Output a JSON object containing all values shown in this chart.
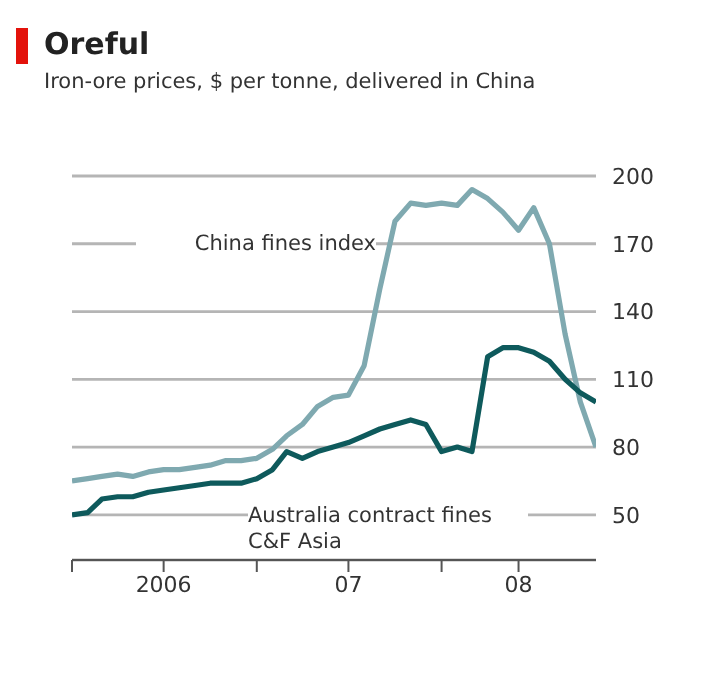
{
  "chart_data": {
    "type": "line",
    "title": "Oreful",
    "subtitle": "Iron-ore prices, $ per tonne, delivered in China",
    "xlim": [
      "2006-01",
      "2008-11"
    ],
    "xticks": [
      {
        "value": "2006-01",
        "label": null
      },
      {
        "value": "2006-07",
        "label": "2006"
      },
      {
        "value": "2007-01",
        "label": null
      },
      {
        "value": "2007-07",
        "label": "07"
      },
      {
        "value": "2008-01",
        "label": null
      },
      {
        "value": "2008-06",
        "label": "08"
      }
    ],
    "ylim": [
      30,
      200
    ],
    "yticks": [
      50,
      80,
      110,
      140,
      170,
      200
    ],
    "grid": "y",
    "legend": false,
    "marker": "none",
    "line_style": "solid",
    "series": [
      {
        "name": "China fines index",
        "color": "#7fa9b0",
        "x": [
          "2006-01",
          "2006-02",
          "2006-03",
          "2006-04",
          "2006-05",
          "2006-06",
          "2006-07",
          "2006-08",
          "2006-09",
          "2006-10",
          "2006-11",
          "2006-12",
          "2007-01",
          "2007-02",
          "2007-03",
          "2007-04",
          "2007-05",
          "2007-06",
          "2007-07",
          "2007-08",
          "2007-09",
          "2007-10",
          "2007-11",
          "2007-12",
          "2008-01",
          "2008-02",
          "2008-03",
          "2008-04",
          "2008-05",
          "2008-06",
          "2008-07",
          "2008-08",
          "2008-09",
          "2008-10",
          "2008-11"
        ],
        "values": [
          65,
          66,
          67,
          68,
          67,
          69,
          70,
          70,
          71,
          72,
          74,
          74,
          75,
          79,
          85,
          90,
          98,
          102,
          103,
          116,
          150,
          180,
          188,
          187,
          188,
          187,
          194,
          190,
          184,
          176,
          186,
          170,
          130,
          100,
          80
        ]
      },
      {
        "name": "Australia contract fines C&F Asia",
        "color": "#0e5a5c",
        "x": [
          "2006-01",
          "2006-02",
          "2006-03",
          "2006-04",
          "2006-05",
          "2006-06",
          "2006-07",
          "2006-08",
          "2006-09",
          "2006-10",
          "2006-11",
          "2006-12",
          "2007-01",
          "2007-02",
          "2007-03",
          "2007-04",
          "2007-05",
          "2007-06",
          "2007-07",
          "2007-08",
          "2007-09",
          "2007-10",
          "2007-11",
          "2007-12",
          "2008-01",
          "2008-02",
          "2008-03",
          "2008-04",
          "2008-05",
          "2008-06",
          "2008-07",
          "2008-08",
          "2008-09",
          "2008-10",
          "2008-11"
        ],
        "values": [
          50,
          51,
          57,
          58,
          58,
          60,
          61,
          62,
          63,
          64,
          64,
          64,
          66,
          70,
          78,
          75,
          78,
          80,
          82,
          85,
          88,
          90,
          92,
          90,
          78,
          80,
          78,
          120,
          124,
          124,
          122,
          118,
          110,
          104,
          100
        ]
      }
    ]
  }
}
